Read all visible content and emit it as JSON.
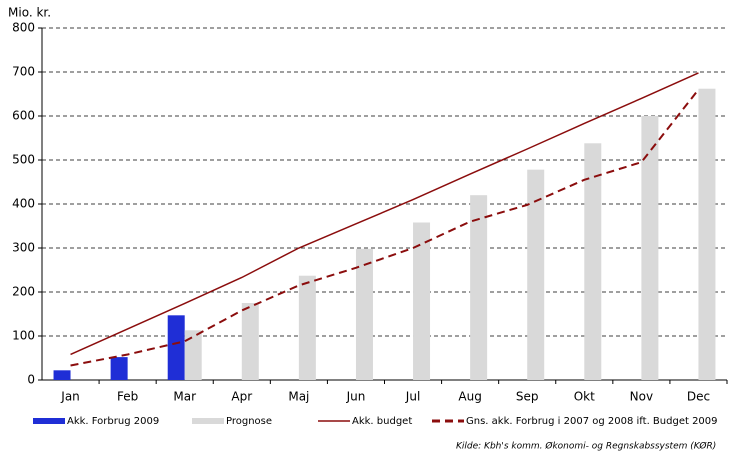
{
  "chart_data": {
    "type": "bar",
    "y_label": "Mio. kr.",
    "categories": [
      "Jan",
      "Feb",
      "Mar",
      "Apr",
      "Maj",
      "Jun",
      "Jul",
      "Aug",
      "Sep",
      "Okt",
      "Nov",
      "Dec"
    ],
    "series": [
      {
        "name": "Akk. Forbrug 2009",
        "type": "bar",
        "color": "#1f2ed6",
        "values": [
          22,
          52,
          147,
          null,
          null,
          null,
          null,
          null,
          null,
          null,
          null,
          null
        ]
      },
      {
        "name": "Prognose",
        "type": "bar",
        "color": "#d9d9d9",
        "values": [
          null,
          null,
          113,
          175,
          237,
          298,
          358,
          420,
          478,
          538,
          600,
          662
        ]
      },
      {
        "name": "Akk. budget",
        "type": "line",
        "style": "solid",
        "color": "#8b0d0d",
        "values": [
          58,
          116,
          174,
          233,
          300,
          355,
          410,
          468,
          525,
          583,
          640,
          698
        ]
      },
      {
        "name": "Gns. akk. Forbrug i 2007 og 2008 ift. Budget 2009",
        "type": "line",
        "style": "dashed",
        "color": "#8b0d0d",
        "values": [
          33,
          58,
          88,
          158,
          215,
          255,
          300,
          360,
          398,
          455,
          495,
          660
        ]
      }
    ],
    "ylim": [
      0,
      800
    ],
    "yticks": [
      0,
      100,
      200,
      300,
      400,
      500,
      600,
      700,
      800
    ],
    "grid": true,
    "source": "Kilde: Kbh's komm. Økonomi- og Regnskabssystem (KØR)"
  }
}
